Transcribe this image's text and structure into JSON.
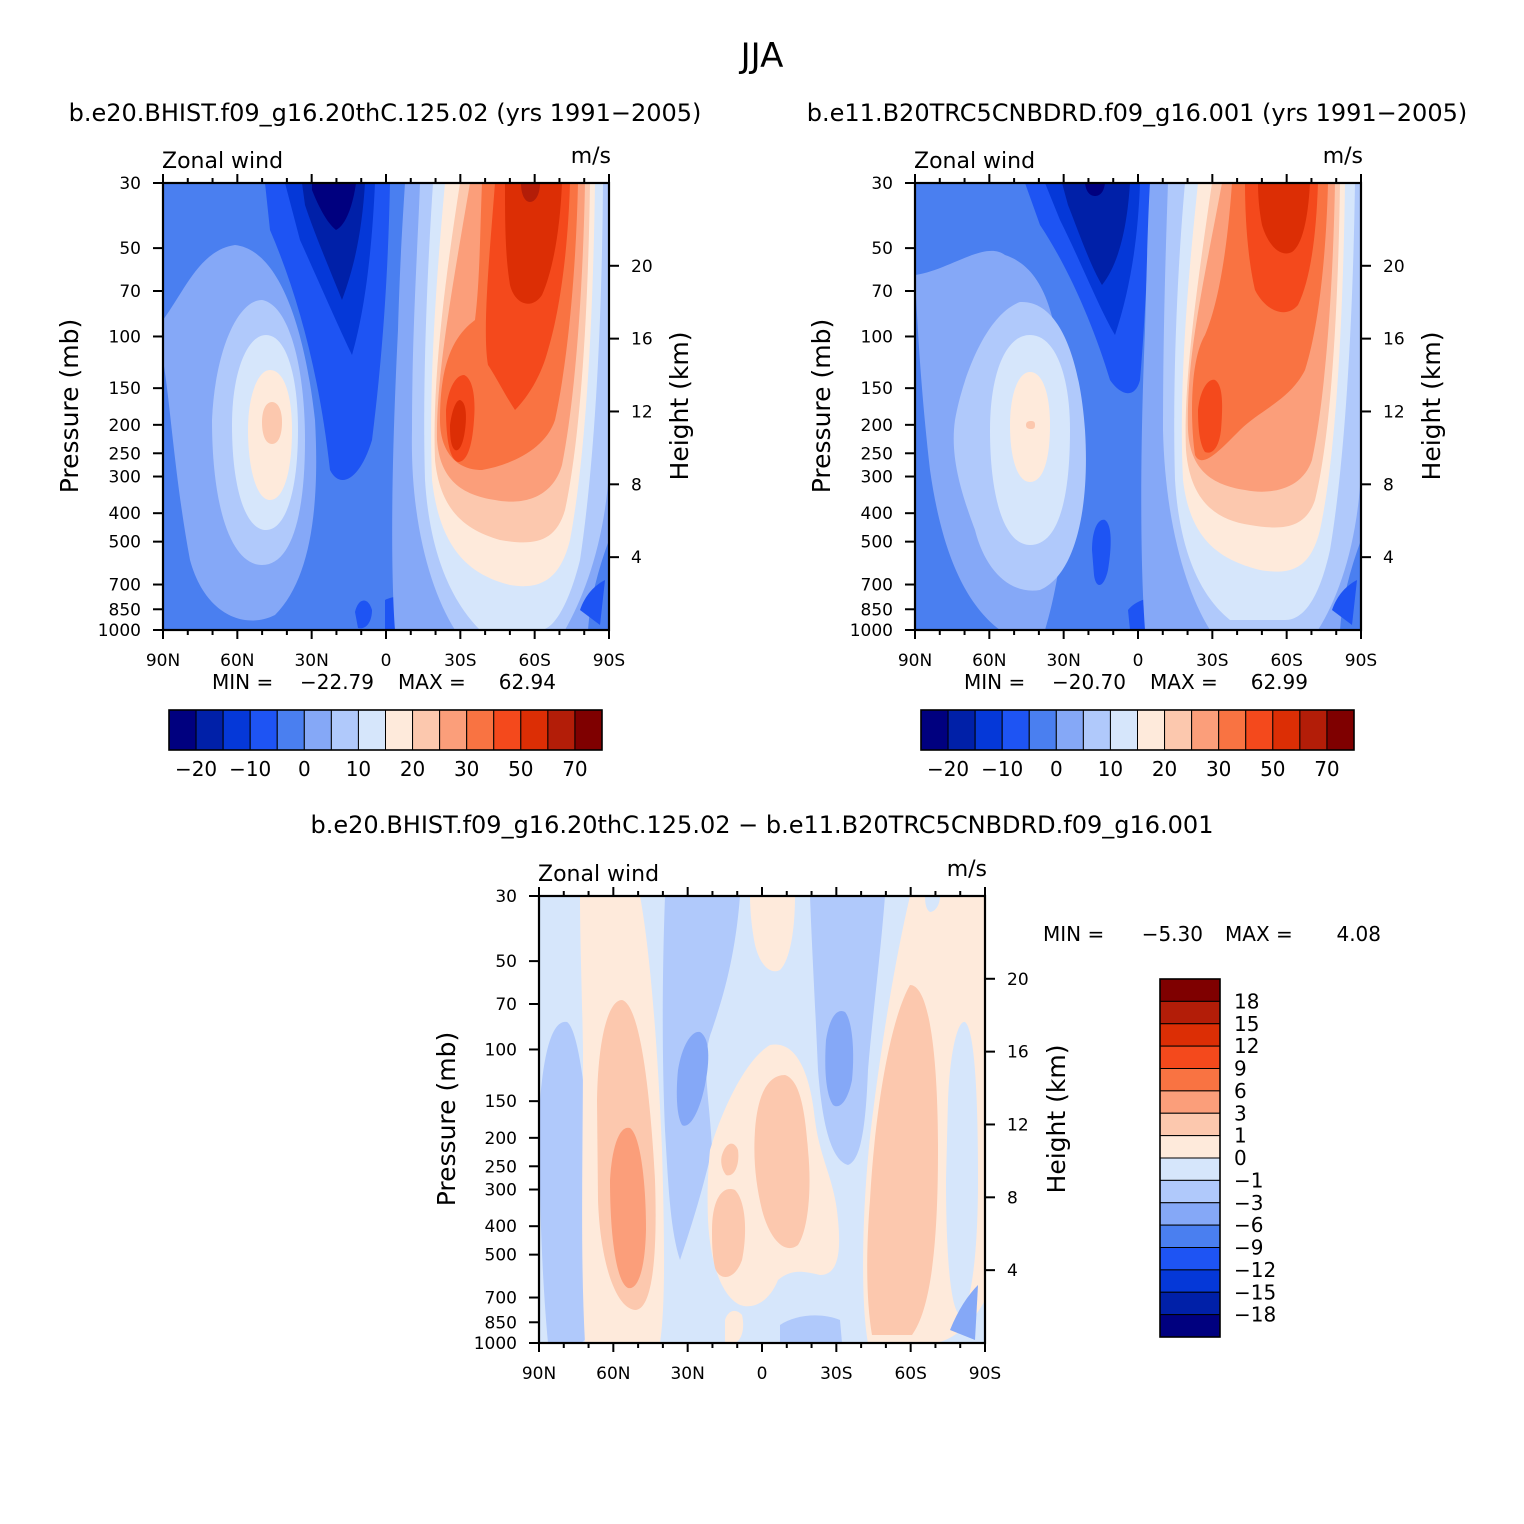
{
  "figure": {
    "title": "JJA"
  },
  "chart_data": [
    {
      "type": "heatmap",
      "title": "b.e20.BHIST.f09_g16.20thC.125.02 (yrs 1991−2005)",
      "subtitle_left": "Zonal wind",
      "subtitle_right": "m/s",
      "ylabel": "Pressure (mb)",
      "ylabel_right": "Height (km)",
      "x_ticks": [
        "90N",
        "60N",
        "30N",
        "0",
        "30S",
        "60S",
        "90S"
      ],
      "y_ticks": [
        "30",
        "50",
        "70",
        "100",
        "150",
        "200",
        "250",
        "300",
        "400",
        "500",
        "700",
        "850",
        "1000"
      ],
      "y_ticks_right": [
        "20",
        "16",
        "12",
        "8",
        "4"
      ],
      "stats": {
        "min_label": "MIN =",
        "min": "−22.79",
        "max_label": "MAX =",
        "max": "62.94"
      },
      "colorbar_labels": [
        "−20",
        "−10",
        "0",
        "10",
        "20",
        "30",
        "50",
        "70"
      ]
    },
    {
      "type": "heatmap",
      "title": "b.e11.B20TRC5CNBDRD.f09_g16.001 (yrs 1991−2005)",
      "subtitle_left": "Zonal wind",
      "subtitle_right": "m/s",
      "ylabel": "Pressure (mb)",
      "ylabel_right": "Height (km)",
      "x_ticks": [
        "90N",
        "60N",
        "30N",
        "0",
        "30S",
        "60S",
        "90S"
      ],
      "y_ticks": [
        "30",
        "50",
        "70",
        "100",
        "150",
        "200",
        "250",
        "300",
        "400",
        "500",
        "700",
        "850",
        "1000"
      ],
      "y_ticks_right": [
        "20",
        "16",
        "12",
        "8",
        "4"
      ],
      "stats": {
        "min_label": "MIN =",
        "min": "−20.70",
        "max_label": "MAX =",
        "max": "62.99"
      },
      "colorbar_labels": [
        "−20",
        "−10",
        "0",
        "10",
        "20",
        "30",
        "50",
        "70"
      ]
    },
    {
      "type": "heatmap",
      "title": "b.e20.BHIST.f09_g16.20thC.125.02 − b.e11.B20TRC5CNBDRD.f09_g16.001",
      "subtitle_left": "Zonal wind",
      "subtitle_right": "m/s",
      "ylabel": "Pressure (mb)",
      "ylabel_right": "Height (km)",
      "x_ticks": [
        "90N",
        "60N",
        "30N",
        "0",
        "30S",
        "60S",
        "90S"
      ],
      "y_ticks": [
        "30",
        "50",
        "70",
        "100",
        "150",
        "200",
        "250",
        "300",
        "400",
        "500",
        "700",
        "850",
        "1000"
      ],
      "y_ticks_right": [
        "20",
        "16",
        "12",
        "8",
        "4"
      ],
      "stats": {
        "min_label": "MIN =",
        "min": "−5.30",
        "max_label": "MAX =",
        "max": "4.08"
      },
      "colorbar_labels": [
        "18",
        "15",
        "12",
        "9",
        "6",
        "3",
        "1",
        "0",
        "−1",
        "−3",
        "−6",
        "−9",
        "−12",
        "−15",
        "−18"
      ]
    }
  ],
  "colors": {
    "scale": [
      "#00007f",
      "#0020a8",
      "#0538d8",
      "#1e54f3",
      "#4a7ff0",
      "#85a8f7",
      "#b0c9fb",
      "#d6e6fb",
      "#feeadb",
      "#fcc8ae",
      "#fb9e7a",
      "#f97342",
      "#f4491c",
      "#dc2e05",
      "#b31d08",
      "#7f0000"
    ]
  }
}
